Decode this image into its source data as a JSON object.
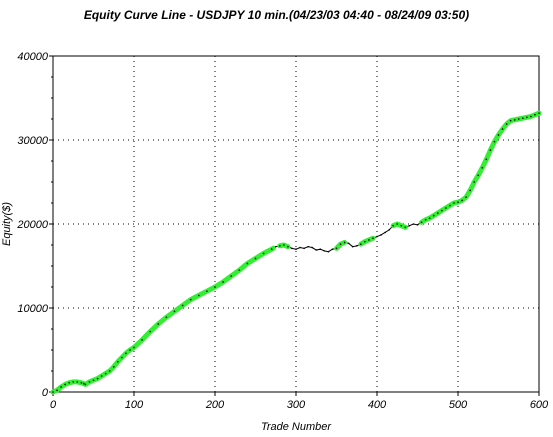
{
  "chart_data": {
    "type": "line",
    "title": "Equity Curve Line - USDJPY 10 min.(04/23/03 04:40 - 08/24/09 03:50)",
    "xlabel": "Trade Number",
    "ylabel": "Equity($)",
    "xlim": [
      0,
      600
    ],
    "ylim": [
      0,
      40000
    ],
    "x_ticks": [
      0,
      100,
      200,
      300,
      400,
      500,
      600
    ],
    "y_ticks": [
      0,
      10000,
      20000,
      30000,
      40000
    ],
    "grid": true,
    "colors": {
      "highlight": "#33ee33",
      "line": "#000000",
      "grid": "#000000"
    },
    "series": [
      {
        "x": [
          0,
          5,
          10,
          15,
          20,
          25,
          30,
          35,
          38,
          40,
          45,
          50,
          55,
          60,
          65,
          70,
          75,
          80,
          85,
          90,
          95,
          100,
          110,
          120,
          130,
          140,
          150,
          160,
          170,
          180,
          190,
          200,
          210,
          220,
          230,
          240,
          250,
          260,
          270,
          275,
          280,
          285,
          290,
          295,
          300,
          305,
          310,
          315,
          320,
          325,
          330,
          335,
          340,
          345,
          350,
          355,
          360,
          365,
          370,
          375,
          380,
          385,
          390,
          395,
          400,
          405,
          410,
          415,
          420,
          425,
          430,
          435,
          440,
          445,
          450,
          455,
          460,
          465,
          470,
          475,
          480,
          485,
          490,
          495,
          500,
          505,
          510,
          515,
          520,
          525,
          530,
          535,
          540,
          545,
          550,
          555,
          560,
          565,
          570,
          575,
          580,
          585,
          590,
          595,
          600
        ],
        "y": [
          0,
          200,
          600,
          900,
          1100,
          1200,
          1200,
          1100,
          1000,
          900,
          1200,
          1400,
          1600,
          1900,
          2200,
          2500,
          3000,
          3600,
          4100,
          4600,
          5000,
          5300,
          6200,
          7200,
          8100,
          8900,
          9600,
          10300,
          11000,
          11500,
          12000,
          12500,
          13100,
          13800,
          14500,
          15300,
          15900,
          16500,
          17000,
          17300,
          17400,
          17500,
          17300,
          17100,
          17000,
          17200,
          17100,
          17300,
          17200,
          16900,
          17000,
          16800,
          16700,
          17000,
          17100,
          17600,
          17800,
          17700,
          17300,
          17400,
          17600,
          17900,
          18100,
          18300,
          18500,
          18700,
          19000,
          19300,
          19800,
          20000,
          19800,
          19600,
          19800,
          20000,
          19900,
          20200,
          20500,
          20700,
          21000,
          21300,
          21600,
          21900,
          22200,
          22500,
          22600,
          22800,
          23200,
          24000,
          25000,
          25800,
          26700,
          27700,
          28800,
          29800,
          30600,
          31300,
          31900,
          32300,
          32400,
          32500,
          32600,
          32700,
          32800,
          33000,
          33200
        ]
      }
    ],
    "highlight_ranges": [
      [
        0,
        38
      ],
      [
        40,
        272
      ],
      [
        280,
        290
      ],
      [
        350,
        360
      ],
      [
        380,
        395
      ],
      [
        420,
        435
      ],
      [
        455,
        600
      ]
    ]
  }
}
